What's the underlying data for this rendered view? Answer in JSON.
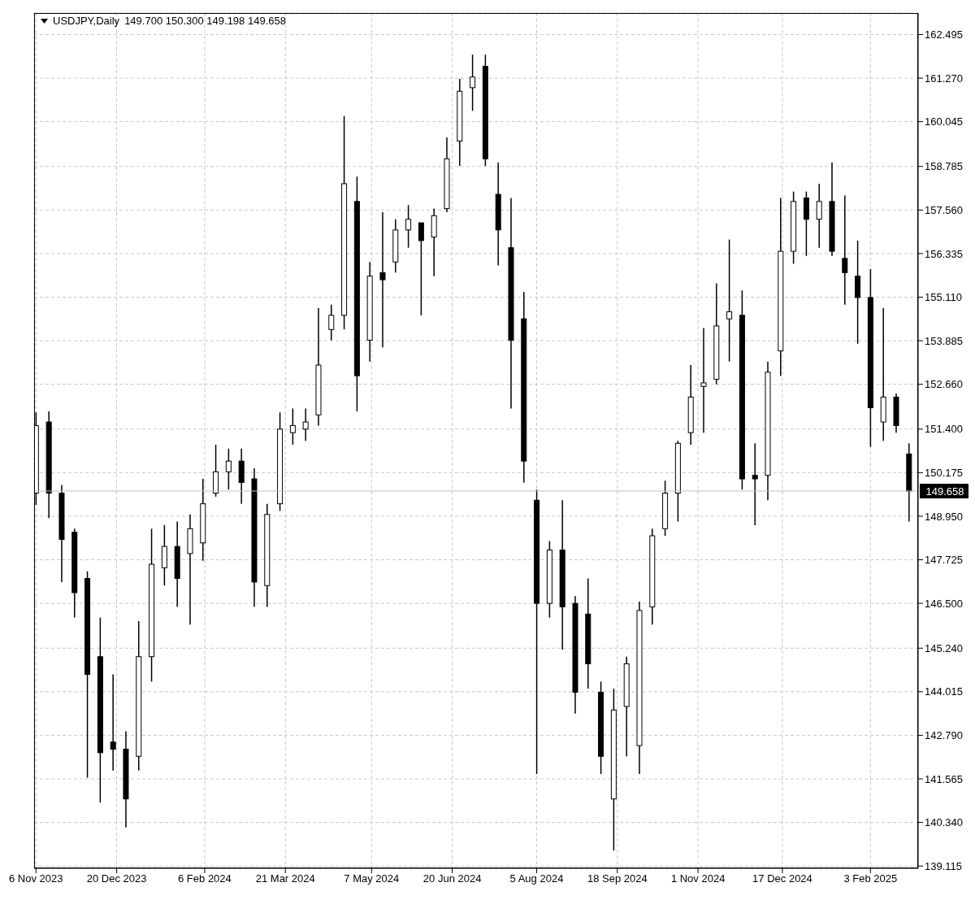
{
  "chart_data": {
    "type": "candlestick",
    "title": "USDJPY,Daily",
    "subtitle": "149.700 150.300 149.198 149.658",
    "color": "#000000",
    "grid": true,
    "x": [
      "2023-11-06",
      "2023-11-13",
      "2023-11-20",
      "2023-11-27",
      "2023-12-04",
      "2023-12-11",
      "2023-12-18",
      "2023-12-25",
      "2024-01-01",
      "2024-01-08",
      "2024-01-15",
      "2024-01-22",
      "2024-01-29",
      "2024-02-05",
      "2024-02-12",
      "2024-02-19",
      "2024-02-26",
      "2024-03-04",
      "2024-03-11",
      "2024-03-18",
      "2024-03-25",
      "2024-04-01",
      "2024-04-08",
      "2024-04-15",
      "2024-04-22",
      "2024-04-29",
      "2024-05-06",
      "2024-05-13",
      "2024-05-20",
      "2024-05-27",
      "2024-06-03",
      "2024-06-10",
      "2024-06-17",
      "2024-06-24",
      "2024-07-01",
      "2024-07-08",
      "2024-07-15",
      "2024-07-22",
      "2024-07-29",
      "2024-08-05",
      "2024-08-12",
      "2024-08-19",
      "2024-08-26",
      "2024-09-02",
      "2024-09-09",
      "2024-09-16",
      "2024-09-23",
      "2024-09-30",
      "2024-10-07",
      "2024-10-14",
      "2024-10-21",
      "2024-10-28",
      "2024-11-04",
      "2024-11-11",
      "2024-11-18",
      "2024-11-25",
      "2024-12-02",
      "2024-12-09",
      "2024-12-16",
      "2024-12-23",
      "2024-12-30",
      "2025-01-06",
      "2025-01-13",
      "2025-01-20",
      "2025-01-27",
      "2025-02-03",
      "2025-02-10",
      "2025-02-17",
      "2025-02-24"
    ],
    "ohlc": [
      [
        149.6,
        151.87,
        149.27,
        151.5
      ],
      [
        151.6,
        151.9,
        148.9,
        149.6
      ],
      [
        149.6,
        149.83,
        147.1,
        148.3
      ],
      [
        148.5,
        148.6,
        146.1,
        146.8
      ],
      [
        147.2,
        147.4,
        141.6,
        144.5
      ],
      [
        145.0,
        146.1,
        140.9,
        142.3
      ],
      [
        142.6,
        144.5,
        141.8,
        142.4
      ],
      [
        142.4,
        142.9,
        140.2,
        141.0
      ],
      [
        142.2,
        146.0,
        141.8,
        145.0
      ],
      [
        145.0,
        148.6,
        144.3,
        147.6
      ],
      [
        147.5,
        148.7,
        147.0,
        148.1
      ],
      [
        148.1,
        148.8,
        146.4,
        147.2
      ],
      [
        147.9,
        149.0,
        145.9,
        148.6
      ],
      [
        148.2,
        150.0,
        147.7,
        149.3
      ],
      [
        149.6,
        150.96,
        149.5,
        150.2
      ],
      [
        150.2,
        150.85,
        149.7,
        150.5
      ],
      [
        150.5,
        150.85,
        149.3,
        149.9
      ],
      [
        150.0,
        150.3,
        146.4,
        147.1
      ],
      [
        147.0,
        149.3,
        146.4,
        149.0
      ],
      [
        149.3,
        151.87,
        149.1,
        151.4
      ],
      [
        151.3,
        151.98,
        150.96,
        151.5
      ],
      [
        151.4,
        151.98,
        151.07,
        151.6
      ],
      [
        151.8,
        154.8,
        151.5,
        153.2
      ],
      [
        154.2,
        154.9,
        153.9,
        154.6
      ],
      [
        154.6,
        160.2,
        154.2,
        158.3
      ],
      [
        157.8,
        158.5,
        151.9,
        152.9
      ],
      [
        153.9,
        156.1,
        153.3,
        155.7
      ],
      [
        155.8,
        157.5,
        153.7,
        155.6
      ],
      [
        156.1,
        157.3,
        155.8,
        157.0
      ],
      [
        157.0,
        157.7,
        156.5,
        157.3
      ],
      [
        157.2,
        157.2,
        154.6,
        156.7
      ],
      [
        156.8,
        157.6,
        155.7,
        157.4
      ],
      [
        157.6,
        159.6,
        157.5,
        159.0
      ],
      [
        159.5,
        161.25,
        158.8,
        160.9
      ],
      [
        161.0,
        161.93,
        160.35,
        161.3
      ],
      [
        161.6,
        161.93,
        158.8,
        159.0
      ],
      [
        158.0,
        158.9,
        156.0,
        157.0
      ],
      [
        156.5,
        157.9,
        151.98,
        153.9
      ],
      [
        154.5,
        155.26,
        149.9,
        150.5
      ],
      [
        149.4,
        149.7,
        141.7,
        146.5
      ],
      [
        146.5,
        148.25,
        146.1,
        148.0
      ],
      [
        148.0,
        149.4,
        145.2,
        146.4
      ],
      [
        146.5,
        146.7,
        143.4,
        144.0
      ],
      [
        146.2,
        147.2,
        144.1,
        144.8
      ],
      [
        144.0,
        144.3,
        141.7,
        142.2
      ],
      [
        141.0,
        144.1,
        139.55,
        143.5
      ],
      [
        143.6,
        145.0,
        142.2,
        144.8
      ],
      [
        142.5,
        146.55,
        141.7,
        146.3
      ],
      [
        146.4,
        148.6,
        145.9,
        148.4
      ],
      [
        148.6,
        149.95,
        148.4,
        149.6
      ],
      [
        149.6,
        151.07,
        148.8,
        151.0
      ],
      [
        151.3,
        153.2,
        150.96,
        152.3
      ],
      [
        152.6,
        154.24,
        151.3,
        152.7
      ],
      [
        152.8,
        155.5,
        152.66,
        154.3
      ],
      [
        154.5,
        156.73,
        153.3,
        154.7
      ],
      [
        154.6,
        155.3,
        149.7,
        150.0
      ],
      [
        150.1,
        151.0,
        148.7,
        150.0
      ],
      [
        150.1,
        153.3,
        149.4,
        153.0
      ],
      [
        153.6,
        157.9,
        152.9,
        156.4
      ],
      [
        156.4,
        158.08,
        156.05,
        157.8
      ],
      [
        157.9,
        158.08,
        156.27,
        157.3
      ],
      [
        157.3,
        158.3,
        156.5,
        157.8
      ],
      [
        157.8,
        158.9,
        156.27,
        156.4
      ],
      [
        156.2,
        157.97,
        154.9,
        155.8
      ],
      [
        155.7,
        156.7,
        153.8,
        155.1
      ],
      [
        155.1,
        155.9,
        150.9,
        152.0
      ],
      [
        151.6,
        154.8,
        151.07,
        152.3
      ],
      [
        152.3,
        152.4,
        151.3,
        151.5
      ],
      [
        150.7,
        151.0,
        148.8,
        149.658
      ]
    ],
    "xlim": [
      "2023-11-05",
      "2025-03-01"
    ],
    "xticks": [
      {
        "value": "2023-11-06",
        "label": "6 Nov 2023"
      },
      {
        "value": "2023-12-20",
        "label": "20 Dec 2023"
      },
      {
        "value": "2024-02-06",
        "label": "6 Feb 2024"
      },
      {
        "value": "2024-03-21",
        "label": "21 Mar 2024"
      },
      {
        "value": "2024-05-07",
        "label": "7 May 2024"
      },
      {
        "value": "2024-06-20",
        "label": "20 Jun 2024"
      },
      {
        "value": "2024-08-05",
        "label": "5 Aug 2024"
      },
      {
        "value": "2024-09-18",
        "label": "18 Sep 2024"
      },
      {
        "value": "2024-11-01",
        "label": "1 Nov 2024"
      },
      {
        "value": "2024-12-17",
        "label": "17 Dec 2024"
      },
      {
        "value": "2025-02-03",
        "label": "3 Feb 2025"
      }
    ],
    "ylim": [
      139.05,
      163.1
    ],
    "yticks": [
      139.115,
      {
        "value": 140.34,
        "label": "140.340"
      },
      141.565,
      {
        "value": 142.79,
        "label": "142.790"
      },
      144.015,
      {
        "value": 145.24,
        "label": "145.240"
      },
      {
        "value": 146.5,
        "label": "146.500"
      },
      147.725,
      {
        "value": 148.95,
        "label": "148.950"
      },
      150.175,
      {
        "value": 151.4,
        "label": "151.400"
      },
      {
        "value": 152.66,
        "label": "152.660"
      },
      153.885,
      {
        "value": 155.11,
        "label": "155.110"
      },
      156.335,
      {
        "value": 157.56,
        "label": "157.560"
      },
      158.785,
      160.045,
      {
        "value": 161.27,
        "label": "161.270"
      },
      162.495
    ],
    "ref_lines": [
      {
        "axis": "y",
        "value": 149.658,
        "label": "149.658",
        "color": "#c0c0c0"
      }
    ]
  }
}
